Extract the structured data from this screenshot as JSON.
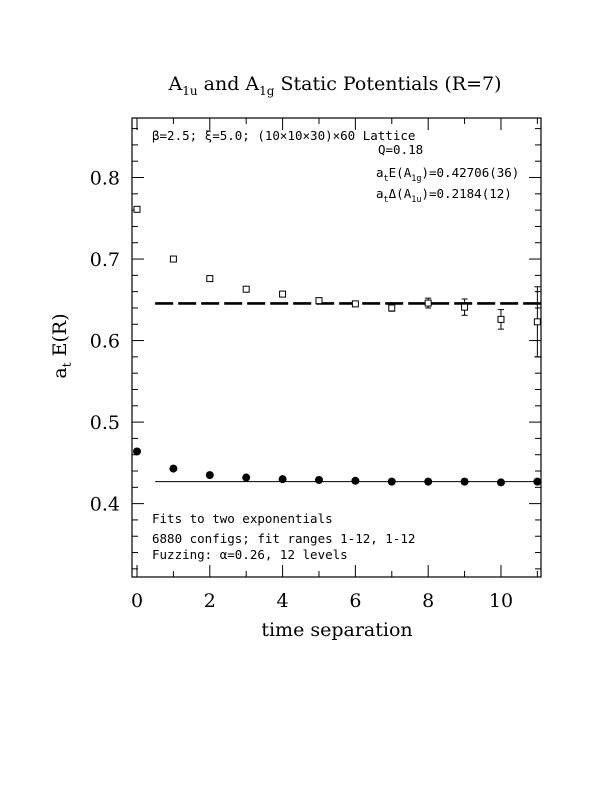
{
  "chart_data": {
    "type": "scatter",
    "title": {
      "prefix": "A",
      "sub1": "1u",
      "mid": " and A",
      "sub2": "1g",
      "suffix": " Static Potentials (R=7)"
    },
    "xlabel": "time separation",
    "ylabel": {
      "main": "a",
      "sub": "t",
      "rest": " E(R)"
    },
    "xlim": [
      0,
      11.1
    ],
    "ylim": [
      0.31,
      0.873
    ],
    "x_ticks": [
      0,
      2,
      4,
      6,
      8,
      10
    ],
    "y_ticks": [
      0.4,
      0.5,
      0.6,
      0.7,
      0.8
    ],
    "x_tick_labels": [
      "0",
      "2",
      "4",
      "6",
      "8",
      "10"
    ],
    "y_tick_labels": [
      "0.4",
      "0.5",
      "0.6",
      "0.7",
      "0.8"
    ],
    "annotations_top": {
      "lattice": "β=2.5; ξ=5.0; (10×10×30)×60 Lattice",
      "q": "Q=0.18",
      "energy": {
        "a": "a",
        "t": "t",
        "mid": "E(A",
        "sub": "1g",
        "rest": ")=0.42706(36)"
      },
      "gap": {
        "a": "a",
        "t": "t",
        "mid": "Δ(A",
        "sub": "1u",
        "rest": ")=0.2184(12)"
      }
    },
    "annotations_bottom": [
      "Fits to two exponentials",
      "6880 configs; fit ranges 1-12, 1-12",
      "Fuzzing: α=0.26, 12 levels"
    ],
    "series": [
      {
        "marker": "open-square",
        "x": [
          0,
          1,
          2,
          3,
          4,
          5,
          6,
          7,
          8,
          9,
          10,
          11
        ],
        "y": [
          0.761,
          0.7,
          0.676,
          0.663,
          0.657,
          0.649,
          0.645,
          0.64,
          0.646,
          0.641,
          0.626,
          0.623
        ],
        "err": [
          0.001,
          0.001,
          0.001,
          0.001,
          0.001,
          0.002,
          0.002,
          0.004,
          0.006,
          0.01,
          0.012,
          0.043
        ]
      },
      {
        "marker": "filled-circle",
        "x": [
          0,
          1,
          2,
          3,
          4,
          5,
          6,
          7,
          8,
          9,
          10,
          11
        ],
        "y": [
          0.464,
          0.443,
          0.435,
          0.432,
          0.43,
          0.429,
          0.428,
          0.427,
          0.427,
          0.427,
          0.426,
          0.427
        ],
        "err": [
          0,
          0,
          0,
          0,
          0,
          0,
          0,
          0,
          0,
          0,
          0,
          0
        ]
      }
    ],
    "fit_lines": [
      {
        "style": "dashed",
        "y": 0.6455,
        "x_range": [
          0.5,
          11.1
        ]
      },
      {
        "style": "solid",
        "y": 0.42706,
        "x_range": [
          0.5,
          11.1
        ]
      }
    ]
  }
}
